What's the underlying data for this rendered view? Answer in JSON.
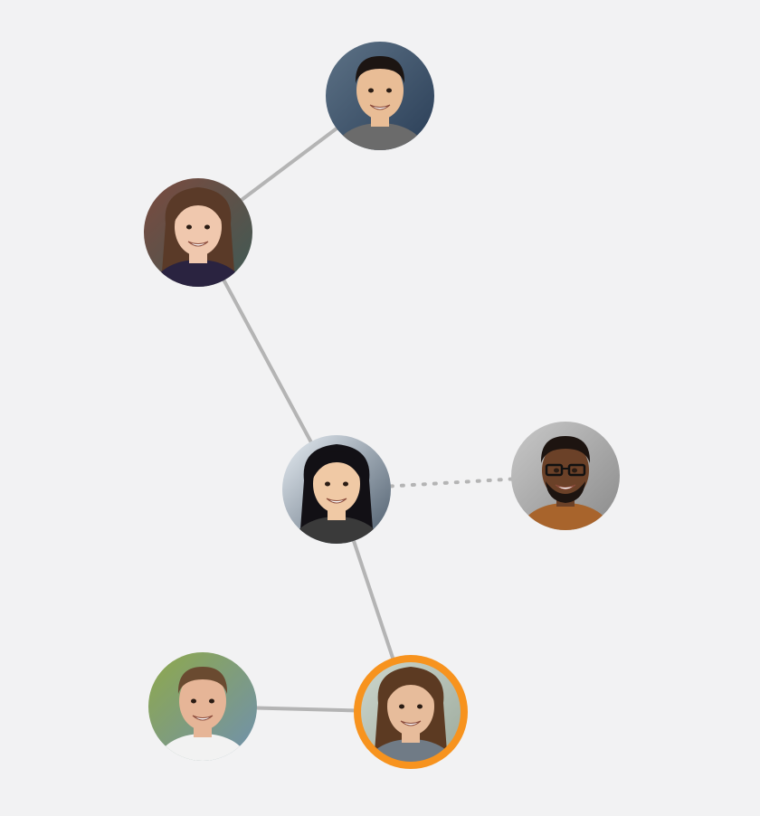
{
  "colors": {
    "background": "#f2f2f3",
    "edge": "#b4b4b4",
    "highlight": "#f7931e"
  },
  "nodes": [
    {
      "id": "man-asian",
      "name": "avatar-man-asian",
      "skin": "#e9bd96",
      "hair": "#1c1512",
      "shirt": "#6b6b6b",
      "bg": "#5d7286",
      "bg2": "#2a3e57",
      "hair_style": "short",
      "beard": false,
      "glasses": false,
      "highlight": false
    },
    {
      "id": "woman-brunette",
      "name": "avatar-woman-brunette",
      "skin": "#f0c8ae",
      "hair": "#5a3a28",
      "shirt": "#2a2340",
      "bg": "#7c4a3e",
      "bg2": "#3e5a55",
      "hair_style": "long",
      "beard": false,
      "glasses": false,
      "highlight": false
    },
    {
      "id": "woman-asian",
      "name": "avatar-woman-asian",
      "skin": "#f0c9a5",
      "hair": "#121015",
      "shirt": "#3a3a3a",
      "bg": "#e8eef4",
      "bg2": "#4a5a6a",
      "hair_style": "long",
      "beard": false,
      "glasses": false,
      "highlight": false
    },
    {
      "id": "man-glasses",
      "name": "avatar-man-glasses",
      "skin": "#6b4128",
      "hair": "#1d1410",
      "shirt": "#a8642c",
      "bg": "#c9c9c9",
      "bg2": "#8a8a8a",
      "hair_style": "short",
      "beard": true,
      "glasses": true,
      "highlight": false
    },
    {
      "id": "man-beard",
      "name": "avatar-man-beard",
      "skin": "#e6b597",
      "hair": "#6a4a30",
      "shirt": "#f2f2f2",
      "bg": "#8fa94a",
      "bg2": "#6f90b0",
      "hair_style": "short",
      "beard": false,
      "glasses": false,
      "highlight": false
    },
    {
      "id": "woman-smile",
      "name": "avatar-woman-smile",
      "skin": "#e7bc9b",
      "hair": "#5c3a22",
      "shirt": "#707b86",
      "bg": "#cfd8cf",
      "bg2": "#9aa89a",
      "hair_style": "long",
      "beard": false,
      "glasses": false,
      "highlight": true
    }
  ],
  "edges": [
    {
      "from": "woman-brunette",
      "to": "man-asian",
      "style": "solid"
    },
    {
      "from": "woman-brunette",
      "to": "woman-asian",
      "style": "solid"
    },
    {
      "from": "woman-asian",
      "to": "man-glasses",
      "style": "dotted"
    },
    {
      "from": "woman-asian",
      "to": "woman-smile",
      "style": "solid"
    },
    {
      "from": "man-beard",
      "to": "woman-smile",
      "style": "solid"
    }
  ]
}
